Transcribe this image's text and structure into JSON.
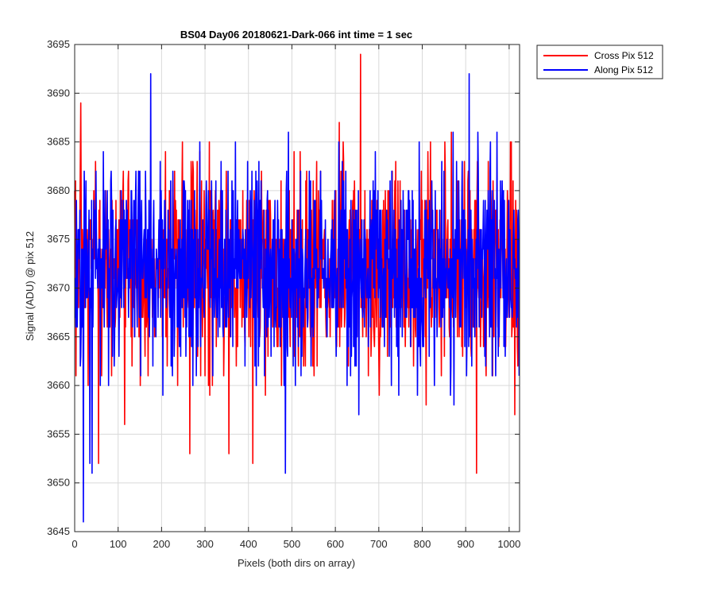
{
  "chart_data": {
    "type": "line",
    "title": "BS04 Day06 20180621-Dark-066 int time = 1 sec",
    "xlabel": "Pixels (both dirs on array)",
    "ylabel": "Signal (ADU) @ pix 512",
    "xlim": [
      0,
      1024
    ],
    "ylim": [
      3645,
      3695
    ],
    "xticks": [
      0,
      100,
      200,
      300,
      400,
      500,
      600,
      700,
      800,
      900,
      1000
    ],
    "yticks": [
      3645,
      3650,
      3655,
      3660,
      3665,
      3670,
      3675,
      3680,
      3685,
      3690,
      3695
    ],
    "grid": true,
    "legend_position": "outside-top-right",
    "series": [
      {
        "name": "Cross Pix 512",
        "color": "#ff0000",
        "stats": {
          "mean": 3672,
          "std": 5.5,
          "min": 3651,
          "max": 3694,
          "count": 1024
        },
        "peaks": [
          [
            658,
            3694
          ],
          [
            925,
            3651
          ],
          [
            55,
            3652
          ],
          [
            410,
            3652
          ],
          [
            265,
            3653
          ],
          [
            355,
            3653
          ]
        ]
      },
      {
        "name": "Along Pix 512",
        "color": "#0000ff",
        "stats": {
          "mean": 3672,
          "std": 5.5,
          "min": 3646,
          "max": 3692,
          "count": 1024
        },
        "peaks": [
          [
            20,
            3646
          ],
          [
            40,
            3651
          ],
          [
            485,
            3651
          ],
          [
            175,
            3692
          ],
          [
            908,
            3692
          ],
          [
            35,
            3652
          ]
        ]
      }
    ]
  }
}
